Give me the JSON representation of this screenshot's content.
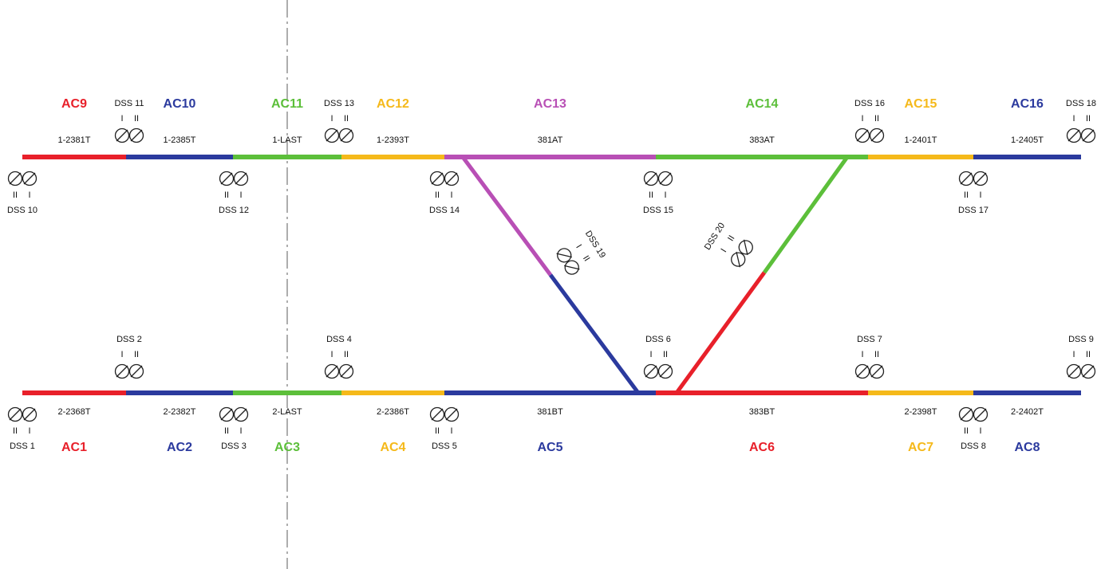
{
  "top_track": {
    "segments": [
      {
        "name": "AC9",
        "circuit": "1-2381T",
        "color": "#e8202a"
      },
      {
        "name": "AC10",
        "circuit": "1-2385T",
        "color": "#2b3a9e"
      },
      {
        "name": "AC11",
        "circuit": "1-LAST",
        "color": "#5cbf3a"
      },
      {
        "name": "AC12",
        "circuit": "1-2393T",
        "color": "#f5b91a"
      },
      {
        "name": "AC13",
        "circuit": "381AT",
        "color": "#b84fb5"
      },
      {
        "name": "AC14",
        "circuit": "383AT",
        "color": "#5cbf3a"
      },
      {
        "name": "AC15",
        "circuit": "1-2401T",
        "color": "#f5b91a"
      },
      {
        "name": "AC16",
        "circuit": "1-2405T",
        "color": "#2b3a9e"
      }
    ]
  },
  "bottom_track": {
    "segments": [
      {
        "name": "AC1",
        "circuit": "2-2368T",
        "color": "#e8202a"
      },
      {
        "name": "AC2",
        "circuit": "2-2382T",
        "color": "#2b3a9e"
      },
      {
        "name": "AC3",
        "circuit": "2-LAST",
        "color": "#5cbf3a"
      },
      {
        "name": "AC4",
        "circuit": "2-2386T",
        "color": "#f5b91a"
      },
      {
        "name": "AC5",
        "circuit": "381BT",
        "color": "#2b3a9e"
      },
      {
        "name": "AC6",
        "circuit": "383BT",
        "color": "#e8202a"
      },
      {
        "name": "AC7",
        "circuit": "2-2398T",
        "color": "#f5b91a"
      },
      {
        "name": "AC8",
        "circuit": "2-2402T",
        "color": "#2b3a9e"
      }
    ]
  },
  "switches": [
    {
      "label": "DSS 11",
      "marks": [
        "I",
        "II"
      ]
    },
    {
      "label": "DSS 13",
      "marks": [
        "I",
        "II"
      ]
    },
    {
      "label": "DSS 16",
      "marks": [
        "I",
        "II"
      ]
    },
    {
      "label": "DSS 18",
      "marks": [
        "I",
        "II"
      ]
    },
    {
      "label": "DSS 10",
      "marks": [
        "II",
        "I"
      ]
    },
    {
      "label": "DSS 12",
      "marks": [
        "II",
        "I"
      ]
    },
    {
      "label": "DSS 14",
      "marks": [
        "II",
        "I"
      ]
    },
    {
      "label": "DSS 15",
      "marks": [
        "II",
        "I"
      ]
    },
    {
      "label": "DSS 17",
      "marks": [
        "II",
        "I"
      ]
    },
    {
      "label": "DSS 2",
      "marks": [
        "I",
        "II"
      ]
    },
    {
      "label": "DSS 4",
      "marks": [
        "I",
        "II"
      ]
    },
    {
      "label": "DSS 6",
      "marks": [
        "I",
        "II"
      ]
    },
    {
      "label": "DSS 7",
      "marks": [
        "I",
        "II"
      ]
    },
    {
      "label": "DSS 9",
      "marks": [
        "I",
        "II"
      ]
    },
    {
      "label": "DSS 1",
      "marks": [
        "II",
        "I"
      ]
    },
    {
      "label": "DSS 3",
      "marks": [
        "II",
        "I"
      ]
    },
    {
      "label": "DSS 5",
      "marks": [
        "II",
        "I"
      ]
    },
    {
      "label": "DSS 8",
      "marks": [
        "II",
        "I"
      ]
    },
    {
      "label": "DSS 19",
      "marks": [
        "I",
        "II"
      ]
    },
    {
      "label": "DSS 20",
      "marks": [
        "I",
        "II"
      ]
    }
  ]
}
